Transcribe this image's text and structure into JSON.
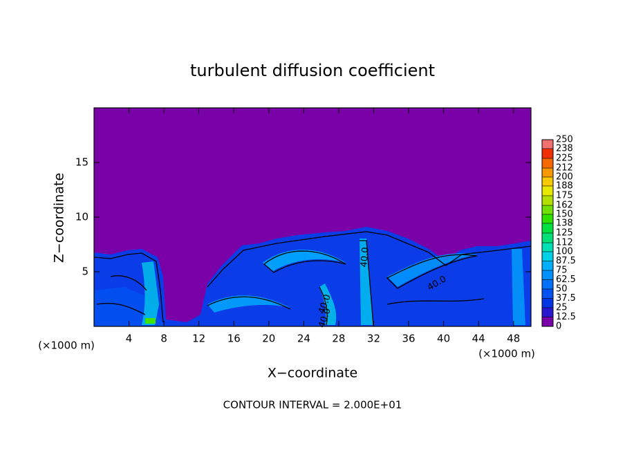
{
  "chart_data": {
    "type": "contour",
    "title": "turbulent diffusion coefficient",
    "x_label": "X−coordinate",
    "y_label": "Z−coordinate",
    "x_unit_label": "(×1000 m)",
    "x_unit_label_right": "(×1000 m)",
    "footnote": "CONTOUR INTERVAL = 2.000E+01",
    "xlim": [
      0,
      50
    ],
    "xticks": [
      4,
      8,
      12,
      16,
      20,
      24,
      28,
      32,
      36,
      40,
      44,
      48
    ],
    "ylim": [
      0,
      20
    ],
    "yticks": [
      5,
      10,
      15
    ],
    "contour_labels": [
      "40.0",
      "40.0",
      "40.0",
      "40.0"
    ],
    "colorbar": {
      "levels": [
        0,
        12.5,
        25,
        37.5,
        50,
        62.5,
        75,
        87.5,
        100,
        112,
        125,
        138,
        150,
        162,
        175,
        188,
        200,
        212,
        225,
        238,
        250
      ],
      "colors": [
        "#7a00a8",
        "#2818d0",
        "#0034e4",
        "#0052f0",
        "#0070f8",
        "#0090ff",
        "#00b0ff",
        "#00d0e8",
        "#00e0b4",
        "#00e078",
        "#00e040",
        "#30e000",
        "#70e000",
        "#b0e000",
        "#e8e800",
        "#f8c800",
        "#f89800",
        "#f86800",
        "#f03000",
        "#f07070"
      ]
    }
  }
}
